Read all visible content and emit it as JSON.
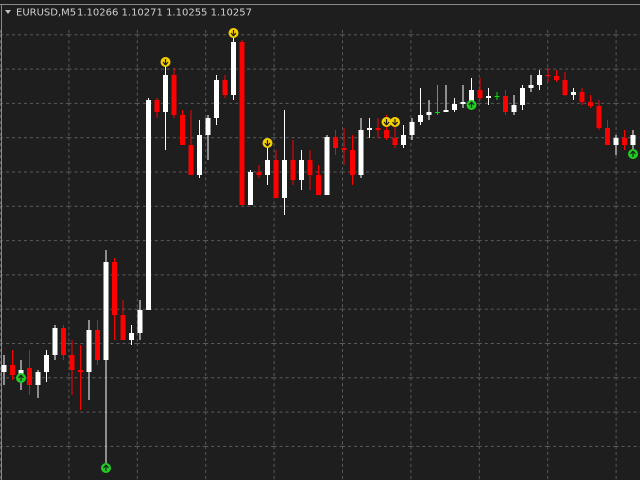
{
  "chart_data": {
    "type": "candlestick",
    "symbol": "EURUSD,M5",
    "quote": "1.10266 1.10271 1.10255 1.10257",
    "ylim": [
      0,
      480
    ],
    "grid": true,
    "up_color": "#ffffff",
    "down_color": "#ff0000",
    "doji_color": "#00e000",
    "open": [
      108,
      115,
      105,
      112,
      95,
      108,
      125,
      152,
      125,
      110,
      108,
      150,
      120,
      218,
      165,
      140,
      147,
      170,
      380,
      368,
      405,
      365,
      335,
      305,
      345,
      362,
      400,
      385,
      438,
      275,
      308,
      305,
      320,
      282,
      320,
      300,
      320,
      305,
      285,
      343,
      332,
      330,
      305,
      350,
      352,
      350,
      342,
      335,
      345,
      358,
      365,
      368,
      368,
      370,
      376,
      378,
      390,
      382,
      384,
      384,
      368,
      375,
      392,
      395,
      405,
      404,
      400,
      385,
      388,
      378,
      374,
      352,
      335,
      342,
      335
    ],
    "high": [
      125,
      130,
      120,
      130,
      110,
      130,
      155,
      155,
      140,
      135,
      160,
      160,
      230,
      222,
      180,
      155,
      180,
      382,
      382,
      415,
      412,
      370,
      370,
      360,
      365,
      405,
      405,
      445,
      440,
      310,
      315,
      340,
      330,
      370,
      340,
      330,
      330,
      315,
      345,
      350,
      352,
      345,
      362,
      362,
      362,
      365,
      360,
      355,
      362,
      392,
      380,
      395,
      395,
      382,
      395,
      402,
      402,
      392,
      388,
      390,
      385,
      395,
      405,
      410,
      412,
      410,
      408,
      392,
      392,
      385,
      380,
      360,
      345,
      350,
      350
    ],
    "low": [
      95,
      100,
      90,
      85,
      82,
      98,
      120,
      120,
      85,
      70,
      80,
      115,
      10,
      140,
      140,
      135,
      140,
      170,
      362,
      330,
      362,
      335,
      305,
      302,
      320,
      355,
      382,
      380,
      275,
      275,
      302,
      295,
      282,
      265,
      295,
      290,
      290,
      285,
      285,
      325,
      315,
      295,
      302,
      342,
      342,
      340,
      332,
      332,
      340,
      355,
      360,
      365,
      368,
      368,
      372,
      370,
      380,
      375,
      380,
      365,
      365,
      370,
      388,
      390,
      398,
      398,
      384,
      380,
      375,
      372,
      350,
      335,
      325,
      330,
      328
    ],
    "close": [
      115,
      105,
      110,
      95,
      108,
      125,
      152,
      125,
      110,
      108,
      150,
      120,
      218,
      165,
      140,
      147,
      170,
      380,
      368,
      405,
      365,
      335,
      305,
      345,
      362,
      400,
      385,
      438,
      275,
      308,
      305,
      320,
      282,
      320,
      300,
      320,
      305,
      285,
      343,
      332,
      330,
      305,
      350,
      352,
      350,
      342,
      335,
      345,
      358,
      365,
      368,
      368,
      370,
      376,
      378,
      390,
      382,
      384,
      384,
      368,
      375,
      392,
      395,
      405,
      404,
      400,
      385,
      388,
      378,
      374,
      352,
      335,
      342,
      335,
      345
    ],
    "signals": [
      {
        "index": 2,
        "kind": "buy",
        "value": 102
      },
      {
        "index": 12,
        "kind": "buy",
        "value": 12
      },
      {
        "index": 19,
        "kind": "sell",
        "value": 418
      },
      {
        "index": 27,
        "kind": "sell",
        "value": 447
      },
      {
        "index": 31,
        "kind": "sell",
        "value": 337
      },
      {
        "index": 45,
        "kind": "sell",
        "value": 358
      },
      {
        "index": 46,
        "kind": "sell",
        "value": 358
      },
      {
        "index": 55,
        "kind": "buy",
        "value": 375
      },
      {
        "index": 74,
        "kind": "buy",
        "value": 326
      }
    ],
    "buy_color": "#22cc22",
    "sell_color": "#f5d000"
  }
}
